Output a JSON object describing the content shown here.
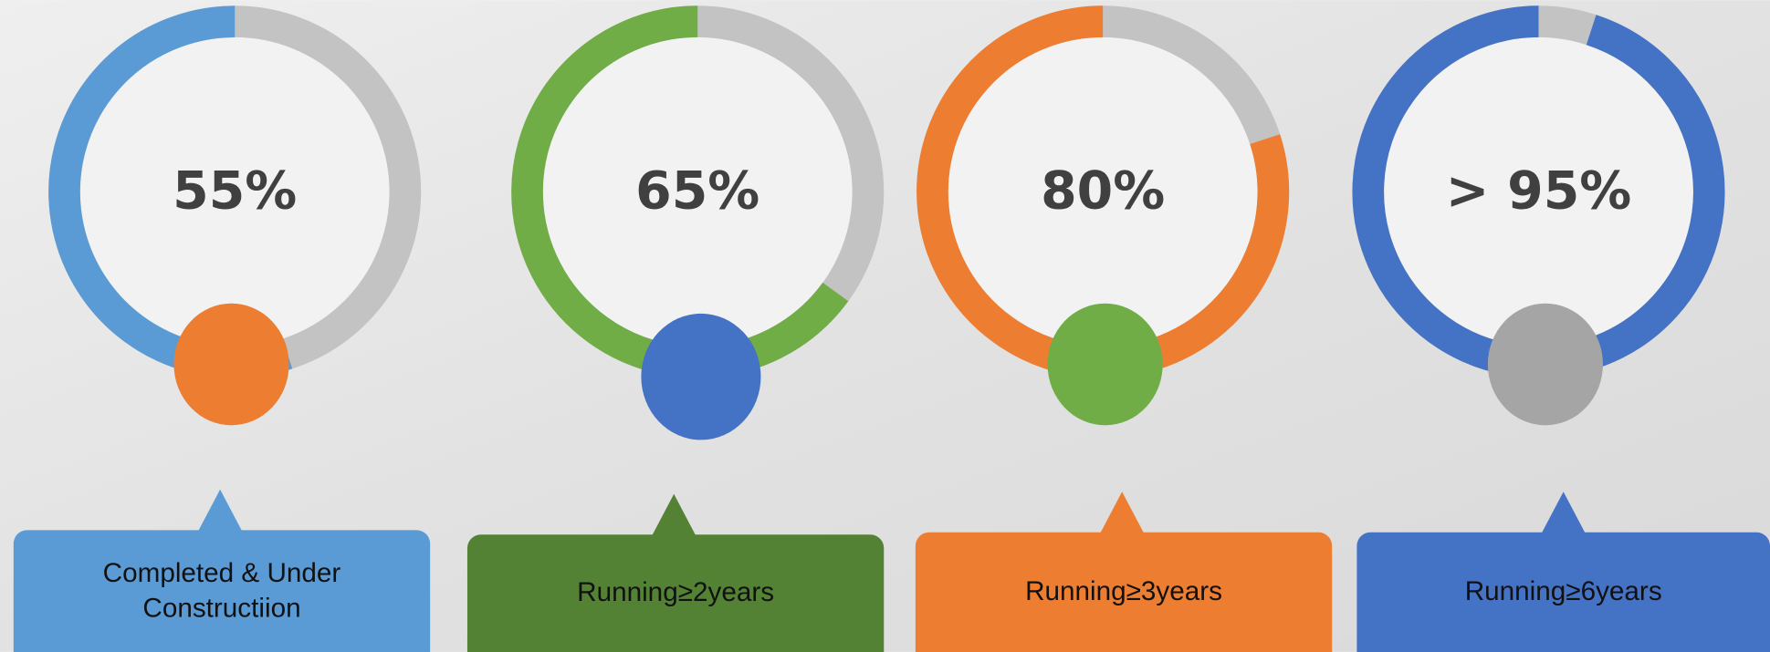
{
  "chart_data": {
    "type": "ring",
    "categories": [
      "Completed & Under Constructiion",
      "Running≥2years",
      "Running≥3years",
      "Running≥6years"
    ],
    "values": [
      55,
      65,
      80,
      95
    ],
    "value_labels": [
      "55%",
      "65%",
      "80%",
      "> 95%"
    ],
    "colors": [
      "#5b9bd5",
      "#70ad47",
      "#ed7d31",
      "#4472c4"
    ],
    "track_color": "#c3c3c3",
    "dot_colors": [
      "#ed7d31",
      "#4472c4",
      "#70ad47",
      "#a5a5a5"
    ],
    "box_colors": [
      "#5b9bd5",
      "#548235",
      "#ed7d31",
      "#4472c4"
    ]
  }
}
